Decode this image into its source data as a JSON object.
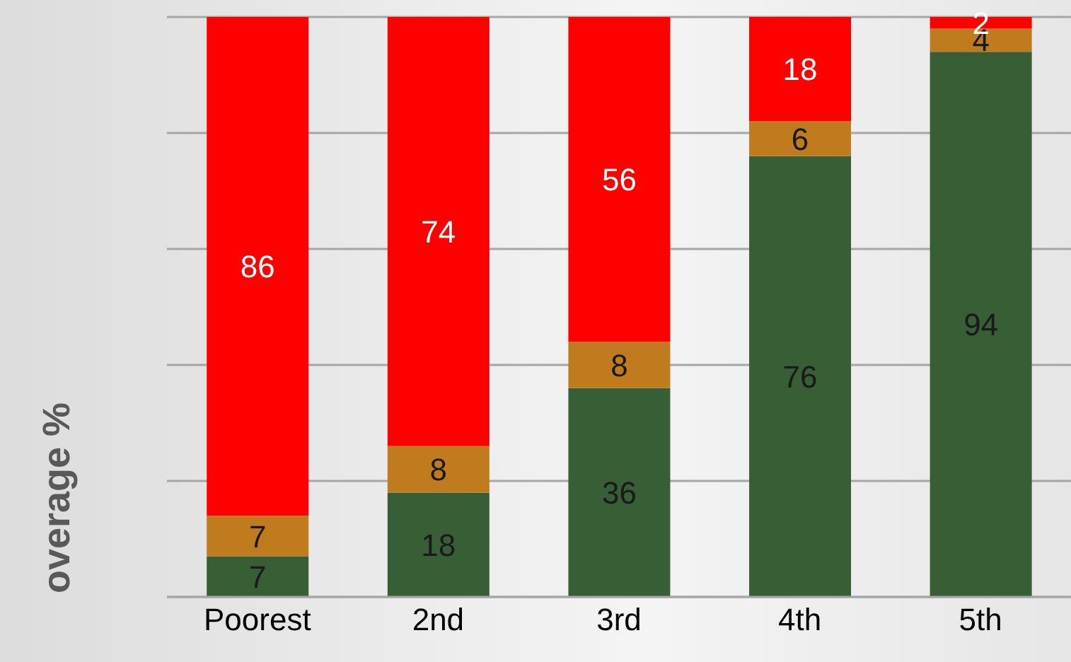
{
  "chart_data": {
    "type": "bar",
    "stacked": true,
    "ylabel": "overage %",
    "categories": [
      "Poorest",
      "2nd",
      "3rd",
      "4th",
      "5th"
    ],
    "series": [
      {
        "color": "#375e35",
        "values": [
          7,
          18,
          36,
          76,
          94
        ]
      },
      {
        "color": "#bf7b1d",
        "values": [
          7,
          8,
          8,
          6,
          4
        ]
      },
      {
        "color": "#ff0000",
        "values": [
          86,
          74,
          56,
          18,
          2
        ]
      }
    ],
    "ylim": [
      0,
      100
    ],
    "yticks": [
      {
        "value": 20,
        "label": null
      },
      {
        "value": 40,
        "label": null
      },
      {
        "value": 60,
        "label": null
      },
      {
        "value": 80,
        "label": null
      },
      {
        "value": 100,
        "label": null
      }
    ],
    "grid": "y",
    "tick_labels": "x",
    "data_labels": true,
    "legend": false
  }
}
